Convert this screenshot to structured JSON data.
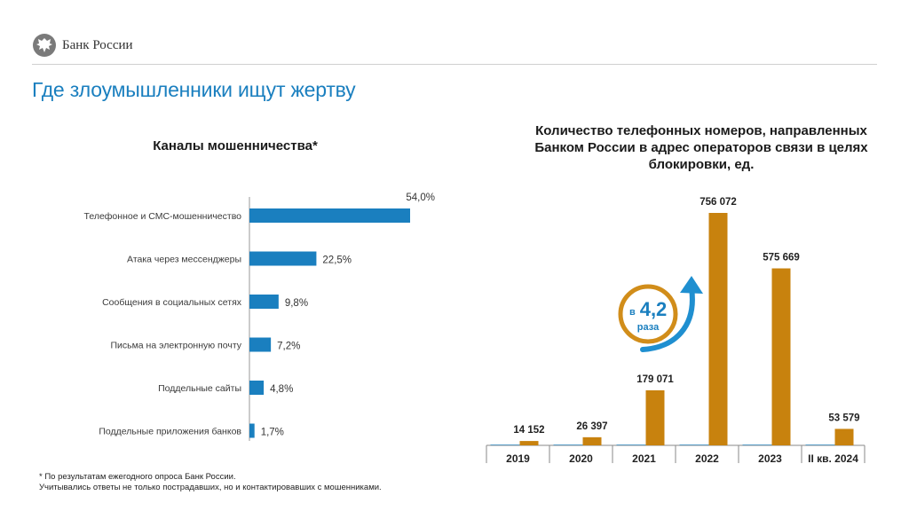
{
  "header": {
    "brand": "Банк России",
    "logo_icon": "double-headed-eagle-icon"
  },
  "page_title": "Где злоумышленники ищут жертву",
  "colors": {
    "accent_blue": "#1a7fbf",
    "bar_blue": "#1a7fbf",
    "bar_gold": "#c8820e",
    "arrow_blue": "#1f8fd0"
  },
  "chart_data": [
    {
      "type": "bar",
      "orientation": "horizontal",
      "title": "Каналы мошенничества*",
      "categories": [
        "Телефонное и СМС-мошенничество",
        "Атака через мессенджеры",
        "Сообщения в социальных сетях",
        "Письма на электронную почту",
        "Поддельные сайты",
        "Поддельные приложения банков"
      ],
      "values": [
        54.0,
        22.5,
        9.8,
        7.2,
        4.8,
        1.7
      ],
      "value_labels": [
        "54,0%",
        "22,5%",
        "9,8%",
        "7,2%",
        "4,8%",
        "1,7%"
      ],
      "xlim": [
        0,
        60
      ],
      "grid": false
    },
    {
      "type": "bar",
      "orientation": "vertical",
      "title": "Количество телефонных номеров, направленных Банком России в адрес операторов связи в целях блокировки, ед.",
      "categories": [
        "2019",
        "2020",
        "2021",
        "2022",
        "2023",
        "II кв. 2024"
      ],
      "values": [
        14152,
        26397,
        179071,
        756072,
        575669,
        53579
      ],
      "value_labels": [
        "14 152",
        "26 397",
        "179 071",
        "756 072",
        "575 669",
        "53 579"
      ],
      "ylim": [
        0,
        756072
      ],
      "grid": false,
      "annotation": {
        "prefix": "в",
        "number": "4,2",
        "suffix": "раза"
      }
    }
  ],
  "footnote": {
    "line1": "* По результатам ежегодного опроса Банк России.",
    "line2": "Учитывались ответы не только пострадавших, но и контактировавших с мошенниками."
  }
}
